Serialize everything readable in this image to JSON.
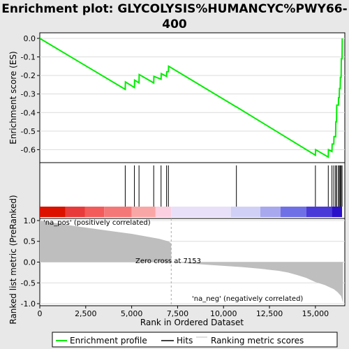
{
  "title_line1": "Enrichment plot: GLYCOLYSIS%HUMANCYC%PWY66-",
  "title_line2": "400",
  "colors": {
    "enrichment_line": "#00ee00",
    "hits": "#000000",
    "metric_fill": "#bebebe",
    "pos_label": "#ff0000",
    "neg_label": "#0000cc"
  },
  "chart_data": [
    {
      "type": "line",
      "name": "enrichment",
      "ylabel": "Enrichment score (ES)",
      "xlim": [
        0,
        16600
      ],
      "ylim": [
        -0.67,
        0.03
      ],
      "yticks": [
        0.0,
        -0.1,
        -0.2,
        -0.3,
        -0.4,
        -0.5,
        -0.6
      ],
      "ytick_labels": [
        "0.0",
        "-0.1",
        "-0.2",
        "-0.3",
        "-0.4",
        "-0.5",
        "-0.6"
      ],
      "grid": true,
      "series": [
        {
          "name": "Enrichment profile",
          "x": [
            0,
            4650,
            4660,
            5150,
            5160,
            5400,
            5410,
            6200,
            6210,
            6600,
            6610,
            6900,
            6910,
            7000,
            7010,
            10700,
            10710,
            15000,
            15010,
            15700,
            15710,
            15900,
            15910,
            16000,
            16010,
            16100,
            16110,
            16150,
            16160,
            16250,
            16260,
            16300,
            16310,
            16350,
            16360,
            16400,
            16410,
            16450,
            16460
          ],
          "y": [
            0.0,
            -0.275,
            -0.235,
            -0.265,
            -0.225,
            -0.24,
            -0.195,
            -0.24,
            -0.205,
            -0.22,
            -0.19,
            -0.205,
            -0.18,
            -0.18,
            -0.15,
            -0.37,
            -0.37,
            -0.63,
            -0.6,
            -0.64,
            -0.6,
            -0.61,
            -0.57,
            -0.57,
            -0.53,
            -0.53,
            -0.45,
            -0.45,
            -0.36,
            -0.36,
            -0.32,
            -0.32,
            -0.27,
            -0.27,
            -0.21,
            -0.21,
            -0.11,
            -0.11,
            0.0
          ]
        }
      ]
    },
    {
      "type": "hits",
      "name": "Hits",
      "positions": [
        4650,
        5150,
        5400,
        6200,
        6600,
        6900,
        7000,
        10700,
        15000,
        15700,
        15900,
        16000,
        16100,
        16150,
        16250,
        16300,
        16350,
        16400,
        16450
      ]
    },
    {
      "type": "area",
      "name": "Ranking metric scores",
      "xlabel": "Rank in Ordered Dataset",
      "ylabel": "Ranked list metric (PreRanked)",
      "xlim": [
        0,
        16600
      ],
      "ylim": [
        -1.05,
        1.05
      ],
      "yticks": [
        1.0,
        0.5,
        0.0,
        -0.5,
        -1.0
      ],
      "ytick_labels": [
        "1.0",
        "0.5",
        "0.0",
        "-0.5",
        "-1.0"
      ],
      "xticks": [
        0,
        2500,
        5000,
        7500,
        10000,
        12500,
        15000
      ],
      "xtick_labels": [
        "0",
        "2,500",
        "5,000",
        "7,500",
        "10,000",
        "12,500",
        "15,000"
      ],
      "grid": true,
      "x": [
        0,
        500,
        1000,
        2000,
        3000,
        4000,
        5000,
        6000,
        6500,
        7000,
        7150,
        7160,
        8000,
        9000,
        10000,
        11000,
        12000,
        13000,
        13500,
        14000,
        14500,
        15000,
        15500,
        16000,
        16200,
        16400,
        16500
      ],
      "y": [
        1.0,
        0.96,
        0.93,
        0.86,
        0.8,
        0.74,
        0.68,
        0.6,
        0.56,
        0.5,
        0.45,
        0.0,
        -0.03,
        -0.06,
        -0.09,
        -0.12,
        -0.16,
        -0.21,
        -0.25,
        -0.31,
        -0.38,
        -0.48,
        -0.55,
        -0.65,
        -0.72,
        -0.82,
        -0.98
      ],
      "annotations": {
        "pos_label": "'na_pos' (positively correlated)",
        "zero_cross": "Zero cross at 7153",
        "neg_label": "'na_neg' (negatively correlated)"
      }
    }
  ],
  "legend": {
    "items": [
      "Enrichment profile",
      "Hits",
      "Ranking metric scores"
    ]
  }
}
